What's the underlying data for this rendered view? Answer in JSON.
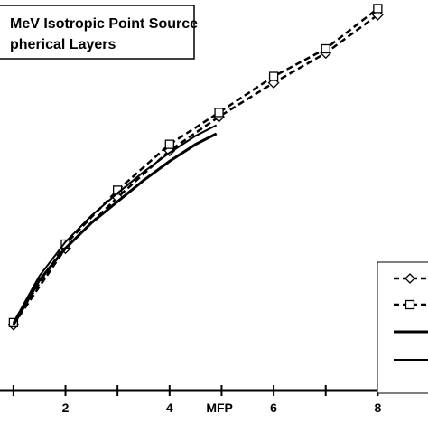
{
  "chart_data": {
    "type": "line",
    "title_lines": [
      "MeV Isotropic Point Source",
      "pherical Layers"
    ],
    "xlabel": "MFP",
    "ylabel": "",
    "xlim": [
      0.95,
      9.0
    ],
    "ylim": [
      0.0,
      9.2
    ],
    "x_ticks": [
      1,
      2,
      3,
      4,
      5,
      6,
      7,
      8,
      9
    ],
    "x_tick_labels": [
      "",
      "2",
      "",
      "4",
      "",
      "6",
      "",
      "8",
      ""
    ],
    "grid": false,
    "legend_position": "bottom-right",
    "series": [
      {
        "name": "",
        "style": "dashed",
        "marker": "diamond",
        "color": "#000000",
        "x": [
          1.0,
          2.0,
          3.0,
          4.0,
          4.95,
          6.0,
          7.0,
          8.0
        ],
        "y": [
          1.55,
          3.35,
          4.55,
          5.65,
          6.45,
          7.25,
          7.95,
          8.85
        ]
      },
      {
        "name": "",
        "style": "dashed",
        "marker": "square",
        "color": "#000000",
        "x": [
          1.0,
          2.0,
          3.0,
          4.0,
          4.95,
          6.0,
          7.0,
          8.0
        ],
        "y": [
          1.6,
          3.45,
          4.72,
          5.8,
          6.55,
          7.4,
          8.05,
          9.0
        ]
      },
      {
        "name": "",
        "style": "solid-thick",
        "marker": "none",
        "color": "#000000",
        "x": [
          1.0,
          1.5,
          2.0,
          2.5,
          3.0,
          3.5,
          4.0,
          4.5,
          4.9
        ],
        "y": [
          1.55,
          2.6,
          3.35,
          3.95,
          4.45,
          4.95,
          5.4,
          5.8,
          6.05
        ]
      },
      {
        "name": "",
        "style": "solid",
        "marker": "none",
        "color": "#000000",
        "x": [
          1.0,
          1.5,
          2.0,
          2.5,
          3.0,
          3.5,
          4.0,
          4.5,
          4.9
        ],
        "y": [
          1.6,
          2.7,
          3.5,
          4.12,
          4.65,
          5.15,
          5.6,
          6.0,
          6.25
        ]
      }
    ]
  }
}
